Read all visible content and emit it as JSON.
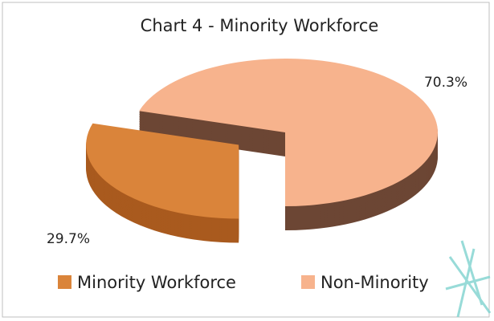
{
  "chart_data": {
    "type": "pie3d",
    "title": "Chart 4 - Minority Workforce",
    "categories": [
      "Minority Workforce",
      "Non-Minority"
    ],
    "values": [
      29.7,
      70.3
    ],
    "value_labels": [
      "29.7%",
      "70.3%"
    ],
    "colors": [
      "#da843a",
      "#f7b38d"
    ],
    "side_colors": [
      "#a95a1e",
      "#6c4634"
    ],
    "legend": "bottom"
  }
}
